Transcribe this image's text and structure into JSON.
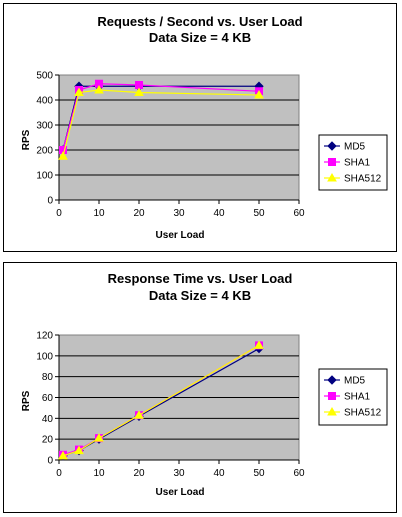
{
  "chart_data": [
    {
      "type": "line",
      "title": "Requests / Second  vs.  User Load",
      "subtitle": "Data Size = 4 KB",
      "xlabel": "User Load",
      "ylabel": "RPS",
      "xlim": [
        0,
        60
      ],
      "ylim": [
        0,
        500
      ],
      "xticks": [
        0,
        10,
        20,
        30,
        40,
        50,
        60
      ],
      "yticks": [
        0,
        100,
        200,
        300,
        400,
        500
      ],
      "grid": true,
      "legend_position": "right",
      "series": [
        {
          "name": "MD5",
          "color": "#000080",
          "marker": "diamond",
          "points": [
            [
              1,
              200
            ],
            [
              5,
              455
            ],
            [
              10,
              455
            ],
            [
              20,
              455
            ],
            [
              50,
              455
            ]
          ]
        },
        {
          "name": "SHA1",
          "color": "#ff00ff",
          "marker": "square",
          "points": [
            [
              1,
              200
            ],
            [
              5,
              440
            ],
            [
              10,
              465
            ],
            [
              20,
              460
            ],
            [
              50,
              435
            ]
          ]
        },
        {
          "name": "SHA512",
          "color": "#ffff00",
          "marker": "triangle",
          "points": [
            [
              1,
              175
            ],
            [
              5,
              430
            ],
            [
              10,
              440
            ],
            [
              20,
              430
            ],
            [
              50,
              420
            ]
          ]
        }
      ]
    },
    {
      "type": "line",
      "title": "Response Time  vs.  User Load",
      "subtitle": "Data Size = 4 KB",
      "xlabel": "User Load",
      "ylabel": "RPS",
      "xlim": [
        0,
        60
      ],
      "ylim": [
        0,
        120
      ],
      "xticks": [
        0,
        10,
        20,
        30,
        40,
        50,
        60
      ],
      "yticks": [
        0,
        20,
        40,
        60,
        80,
        100,
        120
      ],
      "grid": true,
      "legend_position": "right",
      "series": [
        {
          "name": "MD5",
          "color": "#000080",
          "marker": "diamond",
          "points": [
            [
              1,
              4
            ],
            [
              5,
              9
            ],
            [
              10,
              20
            ],
            [
              20,
              42
            ],
            [
              50,
              107
            ]
          ]
        },
        {
          "name": "SHA1",
          "color": "#ff00ff",
          "marker": "square",
          "points": [
            [
              1,
              5
            ],
            [
              5,
              10
            ],
            [
              10,
              21
            ],
            [
              20,
              43
            ],
            [
              50,
              110
            ]
          ]
        },
        {
          "name": "SHA512",
          "color": "#ffff00",
          "marker": "triangle",
          "points": [
            [
              1,
              4
            ],
            [
              5,
              9
            ],
            [
              10,
              21
            ],
            [
              20,
              43
            ],
            [
              50,
              110
            ]
          ]
        }
      ]
    }
  ]
}
